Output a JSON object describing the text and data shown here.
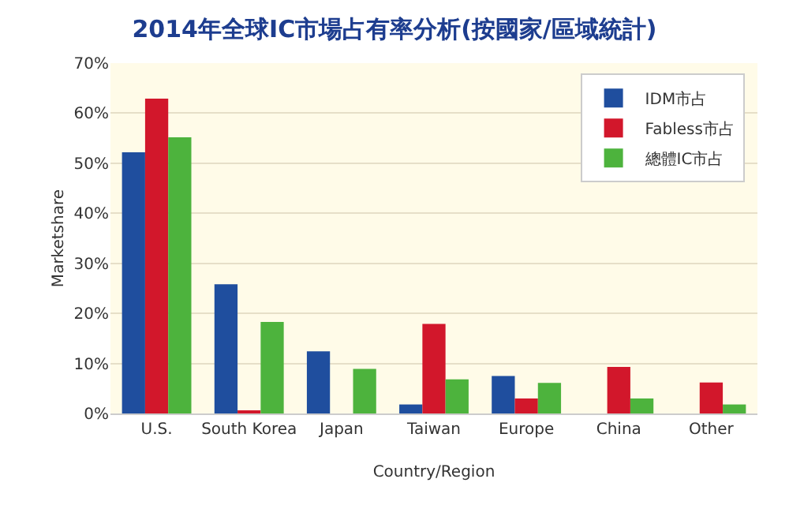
{
  "chart_data": {
    "type": "bar",
    "title": "2014年全球IC市場占有率分析(按國家/區域統計)",
    "xlabel": "Country/Region",
    "ylabel": "Marketshare",
    "categories": [
      "U.S.",
      "South Korea",
      "Japan",
      "Taiwan",
      "Europe",
      "China",
      "Other"
    ],
    "series": [
      {
        "name": "IDM市占",
        "color": "#1f4e9e",
        "values": [
          52.2,
          25.8,
          12.4,
          1.8,
          7.5,
          0,
          0
        ]
      },
      {
        "name": "Fabless市占",
        "color": "#d2172b",
        "values": [
          62.9,
          0.5,
          0,
          17.9,
          3.0,
          9.3,
          6.2
        ]
      },
      {
        "name": "總體IC市占",
        "color": "#4db33d",
        "values": [
          55.2,
          18.3,
          8.9,
          6.8,
          6.1,
          3.0,
          1.8
        ]
      }
    ],
    "ylim": [
      0,
      70
    ],
    "yticks": [
      {
        "value": 0,
        "label": "0%"
      },
      {
        "value": 10,
        "label": "10%"
      },
      {
        "value": 20,
        "label": "20%"
      },
      {
        "value": 30,
        "label": "30%"
      },
      {
        "value": 40,
        "label": "40%"
      },
      {
        "value": 50,
        "label": "50%"
      },
      {
        "value": 60,
        "label": "60%"
      },
      {
        "value": 70,
        "label": "70%"
      }
    ],
    "grid": "y",
    "legend": "top right"
  }
}
